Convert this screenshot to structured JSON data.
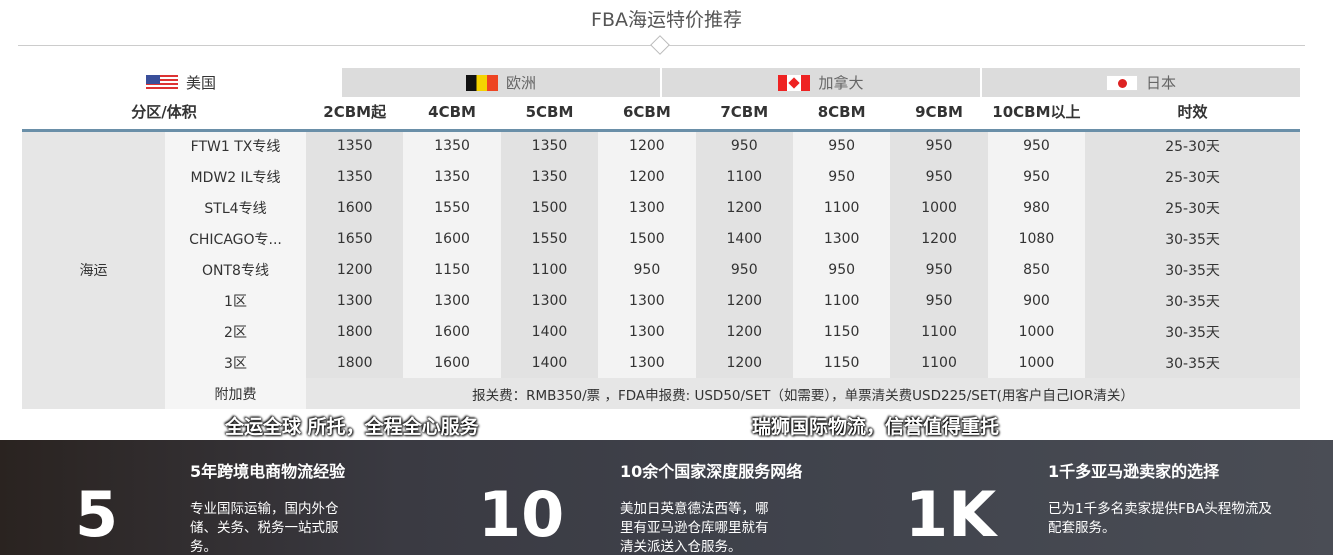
{
  "title": "FBA海运特价推荐",
  "tabs": [
    {
      "label": "美国",
      "flag": "us-flag-icon"
    },
    {
      "label": "欧洲",
      "flag": "belgium-flag-icon"
    },
    {
      "label": "加拿大",
      "flag": "canada-flag-icon"
    },
    {
      "label": "日本",
      "flag": "japan-flag-icon"
    }
  ],
  "table": {
    "headers": [
      "分区/体积",
      "2CBM起",
      "4CBM",
      "5CBM",
      "6CBM",
      "7CBM",
      "8CBM",
      "9CBM",
      "10CBM以上",
      "时效"
    ],
    "group_label": "海运",
    "rows": [
      [
        "FTW1 TX专线",
        "1350",
        "1350",
        "1350",
        "1200",
        "950",
        "950",
        "950",
        "950",
        "25-30天"
      ],
      [
        "MDW2 IL专线",
        "1350",
        "1350",
        "1350",
        "1200",
        "1100",
        "950",
        "950",
        "950",
        "25-30天"
      ],
      [
        "STL4专线",
        "1600",
        "1550",
        "1500",
        "1300",
        "1200",
        "1100",
        "1000",
        "980",
        "25-30天"
      ],
      [
        "CHICAGO专...",
        "1650",
        "1600",
        "1550",
        "1500",
        "1400",
        "1300",
        "1200",
        "1080",
        "30-35天"
      ],
      [
        "ONT8专线",
        "1200",
        "1150",
        "1100",
        "950",
        "950",
        "950",
        "950",
        "850",
        "30-35天"
      ],
      [
        "1区",
        "1300",
        "1300",
        "1300",
        "1300",
        "1200",
        "1100",
        "950",
        "900",
        "30-35天"
      ],
      [
        "2区",
        "1800",
        "1600",
        "1400",
        "1300",
        "1200",
        "1150",
        "1100",
        "1000",
        "30-35天"
      ],
      [
        "3区",
        "1800",
        "1600",
        "1400",
        "1300",
        "1200",
        "1150",
        "1100",
        "1000",
        "30-35天"
      ]
    ],
    "surcharge_label": "附加费",
    "surcharge_text": "报关费：RMB350/票 ，FDA申报费: USD50/SET（如需要），单票清关费USD225/SET(用客户自己IOR清关）"
  },
  "slogans": [
    "全运全球 所托，全程全心服务",
    "瑞狮国际物流，信誉值得重托"
  ],
  "stats": [
    {
      "number": "5",
      "heading": "5年跨境电商物流经验",
      "desc": "专业国际运输，国内外仓储、关务、税务一站式服务。"
    },
    {
      "number": "10",
      "heading": "10余个国家深度服务网络",
      "desc": "美加日英意德法西等，哪里有亚马逊仓库哪里就有清关派送入仓服务。"
    },
    {
      "number": "1K",
      "heading": "1千多亚马逊卖家的选择",
      "desc": "已为1千多名卖家提供FBA头程物流及配套服务。"
    }
  ]
}
